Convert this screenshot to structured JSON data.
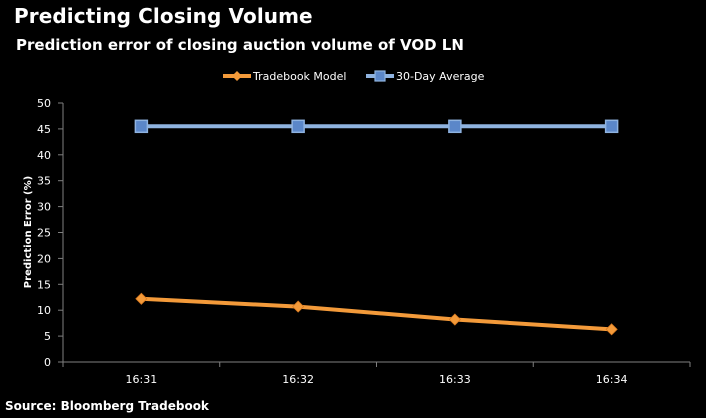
{
  "title": "Predicting Closing Volume",
  "subtitle": "Prediction error of closing auction volume of VOD LN",
  "source": "Source: Bloomberg Tradebook",
  "colors": {
    "background": "#000000",
    "text": "#ffffff",
    "grid": "#1f1f1f",
    "axis": "#7f7f7f",
    "tradebook": "#f39a3a",
    "average": "#8fb3e0",
    "average_marker": "#5b87c9"
  },
  "chart_data": {
    "type": "line",
    "title": "Prediction error of closing auction volume of VOD LN",
    "xlabel": "",
    "ylabel": "Prediction Error (%)",
    "categories": [
      "16:31",
      "16:32",
      "16:33",
      "16:34"
    ],
    "ylim": [
      0,
      50
    ],
    "yticks": [
      0,
      5,
      10,
      15,
      20,
      25,
      30,
      35,
      40,
      45,
      50
    ],
    "grid": false,
    "legend_position": "top-center",
    "series": [
      {
        "name": "Tradebook Model",
        "values": [
          12.2,
          10.7,
          8.2,
          6.3
        ],
        "marker": "diamond",
        "color": "#f39a3a"
      },
      {
        "name": "30-Day Average",
        "values": [
          45.5,
          45.5,
          45.5,
          45.5
        ],
        "marker": "square",
        "color": "#8fb3e0"
      }
    ]
  }
}
